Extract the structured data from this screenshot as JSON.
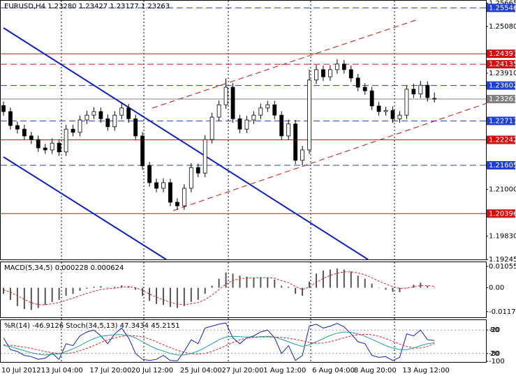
{
  "chart_data": [
    {
      "type": "candlestick",
      "title": "EURUSD,H4  1.23280 1.23427 1.23177 1.23263",
      "categories": [
        "10 Jul 2012",
        null,
        null,
        null,
        null,
        null,
        "13 Jul 04:00",
        null,
        null,
        null,
        null,
        null,
        null,
        "17 Jul 20:00",
        null,
        null,
        null,
        null,
        null,
        "20 Jul 12:00",
        null,
        null,
        null,
        null,
        null,
        null,
        "25 Jul 04:00",
        null,
        null,
        null,
        null,
        null,
        "27 Jul 20:00",
        null,
        null,
        null,
        null,
        null,
        "1 Aug 12:00",
        null,
        null,
        null,
        null,
        null,
        null,
        "6 Aug 04:00",
        null,
        null,
        null,
        null,
        null,
        "8 Aug 20:00",
        null,
        null,
        null,
        null,
        null,
        null,
        "13 Aug 12:00",
        null,
        null,
        null,
        null
      ],
      "open": [
        1.231,
        1.2295,
        1.226,
        1.2251,
        1.2234,
        1.2225,
        1.2204,
        1.2199,
        1.2216,
        1.2194,
        1.2251,
        1.2243,
        1.2274,
        1.2286,
        1.2295,
        1.2277,
        1.2257,
        1.2286,
        1.2304,
        1.2277,
        1.2234,
        1.2159,
        1.2117,
        1.2103,
        1.2117,
        1.2068,
        1.2059,
        1.2103,
        1.2155,
        1.2141,
        1.2225,
        1.2281,
        1.2312,
        1.2356,
        1.2277,
        1.2251,
        1.2274,
        1.2286,
        1.2304,
        1.2312,
        1.2286,
        1.2234,
        1.2264,
        1.2173,
        1.2199,
        1.2374,
        1.24,
        1.2382,
        1.24,
        1.2414,
        1.24,
        1.2379,
        1.2356,
        1.2347,
        1.2309,
        1.2295,
        1.2298,
        1.2277,
        1.2286,
        1.2351,
        1.2339,
        1.2361,
        1.2328
      ],
      "high": [
        1.232,
        1.2305,
        1.227,
        1.2262,
        1.2244,
        1.2235,
        1.2214,
        1.2228,
        1.2226,
        1.2262,
        1.2262,
        1.2285,
        1.2297,
        1.2306,
        1.2305,
        1.2288,
        1.2296,
        1.2318,
        1.2314,
        1.2287,
        1.2244,
        1.2169,
        1.2127,
        1.2128,
        1.2127,
        1.2078,
        1.2113,
        1.2166,
        1.2165,
        1.2236,
        1.2292,
        1.2323,
        1.2378,
        1.2366,
        1.2287,
        1.2284,
        1.2296,
        1.2315,
        1.2322,
        1.2322,
        1.2296,
        1.2275,
        1.2274,
        1.2209,
        1.24,
        1.2412,
        1.241,
        1.2411,
        1.2426,
        1.2424,
        1.241,
        1.2389,
        1.2366,
        1.2357,
        1.2319,
        1.2307,
        1.2308,
        1.2296,
        1.236,
        1.2365,
        1.2372,
        1.2371,
        1.23427
      ],
      "low": [
        1.2285,
        1.225,
        1.224,
        1.2224,
        1.2214,
        1.2194,
        1.2189,
        1.2189,
        1.2184,
        1.2184,
        1.2233,
        1.2233,
        1.2264,
        1.2276,
        1.2267,
        1.2247,
        1.2247,
        1.2276,
        1.2267,
        1.2224,
        1.2149,
        1.2107,
        1.2093,
        1.2093,
        1.2058,
        1.2049,
        1.2049,
        1.2093,
        1.2131,
        1.2131,
        1.2215,
        1.2271,
        1.2302,
        1.2267,
        1.2241,
        1.2241,
        1.2264,
        1.2276,
        1.2294,
        1.2276,
        1.2224,
        1.2224,
        1.2163,
        1.216,
        1.2189,
        1.2364,
        1.2372,
        1.2372,
        1.239,
        1.239,
        1.2369,
        1.2346,
        1.2337,
        1.2299,
        1.2285,
        1.2285,
        1.2267,
        1.2267,
        1.2276,
        1.2329,
        1.2329,
        1.232,
        1.23177
      ],
      "close": [
        1.2295,
        1.226,
        1.2251,
        1.2234,
        1.2225,
        1.2204,
        1.2199,
        1.2216,
        1.2194,
        1.2251,
        1.2243,
        1.2274,
        1.2286,
        1.2295,
        1.2277,
        1.2257,
        1.2286,
        1.2304,
        1.2277,
        1.2234,
        1.2159,
        1.2117,
        1.2103,
        1.2117,
        1.2068,
        1.2059,
        1.2103,
        1.2155,
        1.2141,
        1.2225,
        1.2281,
        1.2312,
        1.2356,
        1.2277,
        1.2251,
        1.2274,
        1.2286,
        1.2304,
        1.2312,
        1.2286,
        1.2234,
        1.2264,
        1.2173,
        1.2199,
        1.2374,
        1.24,
        1.2382,
        1.24,
        1.2414,
        1.24,
        1.2379,
        1.2356,
        1.2347,
        1.2309,
        1.2295,
        1.2298,
        1.2277,
        1.2286,
        1.2351,
        1.2339,
        1.2361,
        1.233,
        1.23263
      ],
      "ylim": [
        1.19248,
        1.25691
      ],
      "yticks": [
        1.25665,
        {
          "value": 1.2508,
          "label": "1.25080"
        },
        {
          "value": 1.2391,
          "label": "1.23910"
        },
        {
          "value": 1.21,
          "label": "1.21000"
        },
        {
          "value": 1.1983,
          "label": "1.19830"
        },
        1.19245
      ],
      "levels": [
        {
          "value": 1.25546,
          "color": "#1f3fd0",
          "style": "dashed"
        },
        {
          "value": 1.24397,
          "color": "#d01010",
          "style": "solid"
        },
        {
          "value": 1.24135,
          "color": "#d01010",
          "style": "dashed"
        },
        {
          "value": 1.23602,
          "color": "#1f3fd0",
          "style": "dashed"
        },
        {
          "value": 1.23263,
          "color": "#808080",
          "style": "solid"
        },
        {
          "value": 1.22717,
          "color": "#1f3fd0",
          "style": "dashed"
        },
        {
          "value": 1.22242,
          "color": "#d01010",
          "style": "solid"
        },
        {
          "value": 1.21605,
          "color": "#1f3fd0",
          "style": "dashed"
        },
        {
          "value": 1.20396,
          "color": "#d01010",
          "style": "solid"
        }
      ]
    },
    {
      "type": "combo",
      "title": "MACD(5,34,5) 0.000228 0.000624",
      "ylim": [
        -0.0146,
        0.0126
      ],
      "yticks": [
        0.010554,
        {
          "value": 0,
          "label": "0.00"
        },
        -0.01178
      ],
      "series": [
        {
          "type": "bar",
          "color": "#555555",
          "values": [
            -0.003,
            -0.006,
            -0.009,
            -0.0105,
            -0.011,
            -0.01,
            -0.0085,
            -0.007,
            -0.006,
            -0.004,
            -0.003,
            -0.0015,
            -0.0005,
            0.0005,
            0.0008,
            0.0002,
            0.0005,
            0.0012,
            0.0008,
            -0.001,
            -0.004,
            -0.0065,
            -0.008,
            -0.0085,
            -0.0095,
            -0.01,
            -0.009,
            -0.007,
            -0.006,
            -0.003,
            0.001,
            0.0045,
            0.0075,
            0.007,
            0.006,
            0.0055,
            0.005,
            0.0052,
            0.005,
            0.004,
            0.001,
            0.0005,
            -0.003,
            -0.004,
            0.003,
            0.007,
            0.0085,
            0.009,
            0.0095,
            0.009,
            0.008,
            0.006,
            0.0045,
            0.002,
            0.0,
            -0.001,
            -0.002,
            -0.0022,
            0.0,
            0.0015,
            0.0025,
            0.001,
            0.000228
          ]
        },
        {
          "type": "line",
          "color": "#e02020",
          "dashed": true,
          "values": [
            -0.001,
            -0.0022,
            -0.004,
            -0.0058,
            -0.0074,
            -0.0083,
            -0.0084,
            -0.0079,
            -0.0073,
            -0.0062,
            -0.0051,
            -0.0039,
            -0.0028,
            -0.0017,
            -0.0009,
            -0.0005,
            -0.0002,
            0.0003,
            0.0005,
            0.0,
            -0.0013,
            -0.0031,
            -0.0047,
            -0.006,
            -0.0072,
            -0.0081,
            -0.0084,
            -0.0079,
            -0.0073,
            -0.0059,
            -0.0036,
            -0.0009,
            0.0019,
            0.0036,
            0.0044,
            0.0048,
            0.0049,
            0.005,
            0.005,
            0.0047,
            0.0035,
            0.0025,
            0.0007,
            -0.0009,
            0.0004,
            0.0026,
            0.0046,
            0.0061,
            0.0072,
            0.0078,
            0.0079,
            0.0073,
            0.0064,
            0.0049,
            0.0033,
            0.0019,
            0.0006,
            -0.0003,
            -0.0002,
            0.0004,
            0.0011,
            0.0011,
            0.000624
          ]
        }
      ]
    },
    {
      "type": "line",
      "title": "%R(14) -46.9126  Stoch(34,5,13) 47.3434 45.2151",
      "ylim": [
        0,
        100
      ],
      "yticks": [
        80,
        20
      ],
      "y2lim": [
        -100,
        0
      ],
      "y2ticks": [
        -20,
        -80,
        -100
      ],
      "series": [
        {
          "type": "line",
          "color": "#1020c0",
          "axis": "y2",
          "values": [
            -40,
            -70,
            -75,
            -85,
            -88,
            -95,
            -92,
            -80,
            -95,
            -55,
            -60,
            -35,
            -25,
            -20,
            -35,
            -55,
            -30,
            -15,
            -40,
            -80,
            -95,
            -98,
            -95,
            -85,
            -98,
            -99,
            -75,
            -45,
            -55,
            -15,
            -10,
            -5,
            -2,
            -40,
            -55,
            -40,
            -35,
            -25,
            -20,
            -40,
            -80,
            -60,
            -98,
            -85,
            -10,
            -5,
            -15,
            -10,
            -3,
            -12,
            -30,
            -50,
            -55,
            -85,
            -90,
            -88,
            -98,
            -90,
            -30,
            -35,
            -20,
            -45,
            -46.9126
          ]
        },
        {
          "type": "line",
          "color": "#20a0a0",
          "values": [
            40,
            38,
            32,
            27,
            22,
            18,
            16,
            18,
            19,
            25,
            32,
            40,
            50,
            58,
            64,
            66,
            68,
            68,
            66,
            60,
            50,
            40,
            32,
            26,
            20,
            16,
            16,
            20,
            26,
            35,
            45,
            55,
            62,
            64,
            63,
            62,
            62,
            63,
            64,
            62,
            56,
            50,
            43,
            38,
            42,
            50,
            58,
            66,
            72,
            75,
            74,
            70,
            64,
            56,
            48,
            40,
            34,
            30,
            30,
            34,
            40,
            45,
            47.3434
          ]
        },
        {
          "type": "line",
          "color": "#e02020",
          "dashed": true,
          "values": [
            42,
            41,
            39,
            36,
            33,
            29,
            25,
            22,
            20,
            20,
            22,
            27,
            33,
            40,
            48,
            55,
            60,
            64,
            66,
            65,
            62,
            57,
            50,
            42,
            35,
            28,
            23,
            19,
            18,
            20,
            25,
            32,
            40,
            48,
            55,
            59,
            61,
            62,
            62,
            62,
            61,
            59,
            56,
            52,
            48,
            46,
            47,
            50,
            55,
            60,
            65,
            68,
            69,
            68,
            64,
            58,
            51,
            44,
            38,
            34,
            34,
            38,
            45.2151
          ]
        }
      ]
    }
  ]
}
